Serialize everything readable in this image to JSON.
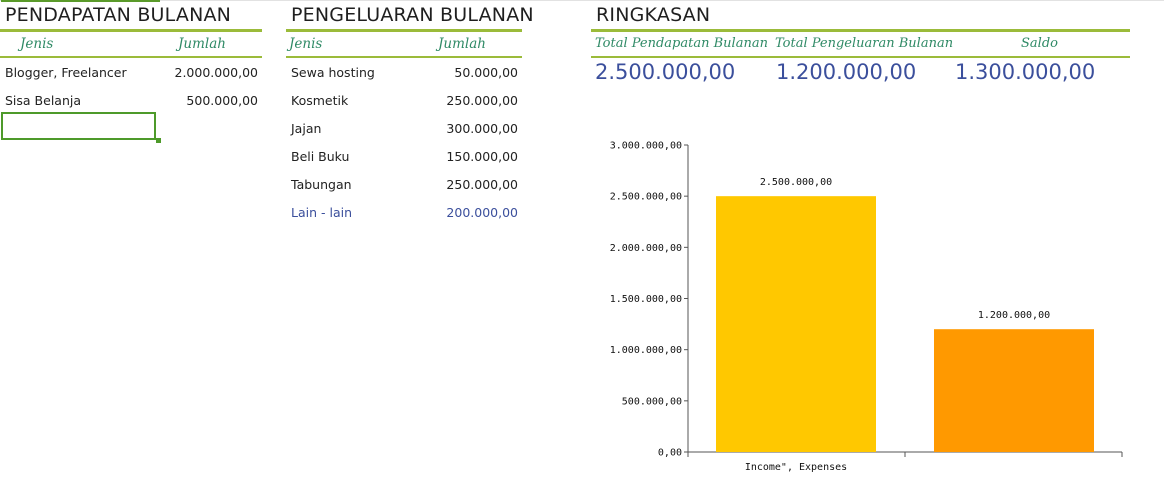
{
  "pendapatan": {
    "title": "PENDAPATAN BULANAN",
    "col_jenis": "Jenis",
    "col_jumlah": "Jumlah",
    "rows": [
      {
        "jenis": "Blogger, Freelancer",
        "jumlah": "2.000.000,00"
      },
      {
        "jenis": "Sisa Belanja",
        "jumlah": "500.000,00"
      }
    ]
  },
  "pengeluaran": {
    "title": "PENGELUARAN BULANAN",
    "col_jenis": "Jenis",
    "col_jumlah": "Jumlah",
    "rows": [
      {
        "jenis": "Sewa hosting",
        "jumlah": "50.000,00"
      },
      {
        "jenis": "Kosmetik",
        "jumlah": "250.000,00"
      },
      {
        "jenis": "Jajan",
        "jumlah": "300.000,00"
      },
      {
        "jenis": "Beli Buku",
        "jumlah": "150.000,00"
      },
      {
        "jenis": "Tabungan",
        "jumlah": "250.000,00"
      },
      {
        "jenis": "Lain - lain",
        "jumlah": "200.000,00"
      }
    ]
  },
  "ringkasan": {
    "title": "RINGKASAN",
    "col_total_pendapatan": "Total Pendapatan Bulanan",
    "col_total_pengeluaran": "Total Pengeluaran Bulanan",
    "col_saldo": "Saldo",
    "total_pendapatan": "2.500.000,00",
    "total_pengeluaran": "1.200.000,00",
    "saldo": "1.300.000,00"
  },
  "colors": {
    "header_rule": "#9bbb3a",
    "header_text": "#2f8a66",
    "value_blue": "#3b4f9c",
    "bar_income": "#ffc800",
    "bar_expenses": "#ff9900"
  },
  "chart_data": {
    "type": "bar",
    "categories": [
      "Income\", Expenses"
    ],
    "series": [
      {
        "values": [
          2500000
        ]
      },
      {
        "values": [
          1200000
        ]
      }
    ],
    "data_labels": [
      "2.500.000,00",
      "1.200.000,00"
    ],
    "y_ticks": [
      0,
      500000,
      1000000,
      1500000,
      2000000,
      2500000,
      3000000
    ],
    "y_tick_labels": [
      "0,00",
      "500.000,00",
      "1.000.000,00",
      "1.500.000,00",
      "2.000.000,00",
      "2.500.000,00",
      "3.000.000,00"
    ],
    "ylim": [
      0,
      3000000
    ],
    "grid": false,
    "legend": "none"
  }
}
